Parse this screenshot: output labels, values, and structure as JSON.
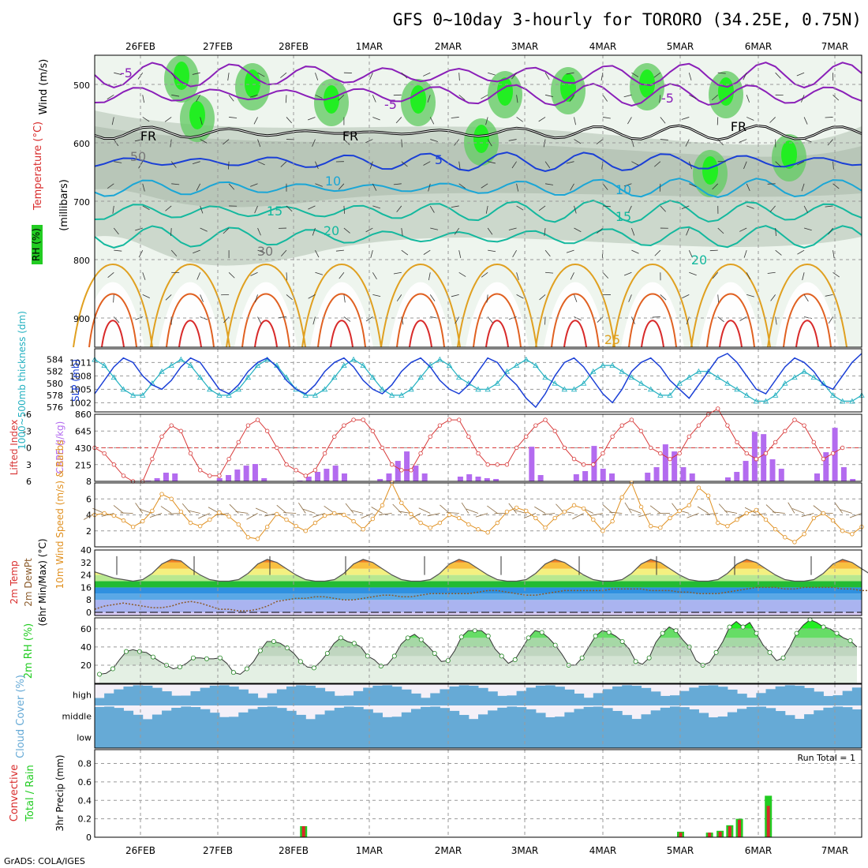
{
  "title": "GFS 0~10day 3-hourly for TORORO (34.25E, 0.75N)",
  "footer": "GrADS: COLA/IGES",
  "colors": {
    "purple": "#8a1fb8",
    "blue": "#1a3fd6",
    "cyan": "#1aa6d6",
    "teal": "#14b89e",
    "orange": "#e0a020",
    "red": "#d82a2a",
    "green": "#22cc22",
    "lightblue": "#66aad6",
    "slp": "#1a3fd6",
    "thick": "#22b0c0",
    "cape": "#b36bef",
    "li": "#d83a3a",
    "wind": "#e09020",
    "rh2m": "#22cc22"
  },
  "chart_data": [
    {
      "name": "upper-air",
      "type": "heatmap",
      "x": [
        "26FEB",
        "27FEB",
        "28FEB",
        "1MAR",
        "2MAR",
        "3MAR",
        "4MAR",
        "5MAR",
        "6MAR",
        "7MAR"
      ],
      "ylabel_parts": [
        "Wind (m/s)",
        "Temperature (°C)",
        "(millibars)",
        "RH (%)"
      ],
      "yticks": [
        500,
        600,
        700,
        800,
        900
      ],
      "ylim": [
        450,
        950
      ],
      "contour_labels": [
        "-5",
        "FR",
        "5",
        "10",
        "15",
        "20",
        "25",
        "30",
        "50"
      ]
    },
    {
      "name": "slp-thickness",
      "type": "line",
      "ylabel": "SLP (mb)",
      "ylabel2": "1000~500mb thickness (dm)",
      "yticks_slp": [
        1002,
        1005,
        1008,
        1011
      ],
      "yticks_thick": [
        576,
        578,
        580,
        582,
        584
      ],
      "slp": [
        1004,
        1007,
        1010,
        1012,
        1011,
        1008,
        1006,
        1005,
        1007,
        1010,
        1012,
        1011,
        1008,
        1005,
        1004,
        1006,
        1009,
        1011,
        1012,
        1010,
        1007,
        1005,
        1004,
        1006,
        1009,
        1011,
        1012,
        1010,
        1007,
        1005,
        1004,
        1006,
        1009,
        1011,
        1012,
        1010,
        1007,
        1005,
        1004,
        1006,
        1009,
        1012,
        1011,
        1008,
        1006,
        1003,
        1001,
        1004,
        1008,
        1011,
        1012,
        1010,
        1007,
        1004,
        1002,
        1005,
        1009,
        1011,
        1012,
        1010,
        1007,
        1005,
        1003,
        1006,
        1009,
        1012,
        1013,
        1011,
        1008,
        1005,
        1004,
        1007,
        1010,
        1012,
        1011,
        1009,
        1006,
        1005,
        1008,
        1011,
        1013
      ],
      "thick": [
        584,
        583,
        581,
        579,
        578,
        578,
        580,
        582,
        583,
        584,
        583,
        581,
        579,
        578,
        578,
        579,
        581,
        583,
        584,
        583,
        581,
        579,
        578,
        578,
        579,
        581,
        583,
        584,
        583,
        581,
        579,
        578,
        578,
        579,
        581,
        583,
        584,
        583,
        581,
        580,
        579,
        579,
        580,
        582,
        583,
        584,
        583,
        581,
        580,
        579,
        579,
        580,
        582,
        583,
        583,
        582,
        581,
        580,
        579,
        578,
        578,
        580,
        581,
        582,
        582,
        581,
        580,
        579,
        578,
        577,
        577,
        578,
        580,
        581,
        582,
        581,
        580,
        578,
        577,
        577,
        578
      ]
    },
    {
      "name": "cape-li",
      "type": "bar",
      "ylabel": "CAPE (J/kg)",
      "ylabel2": "Lifted Index",
      "yticks_cape": [
        8,
        215,
        430,
        645,
        860
      ],
      "yticks_li": [
        -6,
        -3,
        0,
        3,
        6
      ],
      "cape": [
        0,
        0,
        0,
        0,
        0,
        0,
        10,
        40,
        110,
        100,
        0,
        0,
        0,
        0,
        40,
        80,
        150,
        200,
        220,
        40,
        0,
        0,
        0,
        10,
        60,
        120,
        160,
        200,
        100,
        0,
        0,
        0,
        30,
        100,
        260,
        380,
        200,
        100,
        0,
        0,
        0,
        60,
        90,
        60,
        40,
        30,
        0,
        0,
        0,
        440,
        80,
        0,
        0,
        0,
        90,
        130,
        450,
        160,
        100,
        0,
        0,
        0,
        110,
        180,
        470,
        380,
        180,
        100,
        0,
        0,
        0,
        50,
        120,
        260,
        630,
        600,
        280,
        160,
        0,
        0,
        0,
        100,
        370,
        680,
        180,
        30,
        0
      ],
      "li": [
        0,
        1,
        3,
        5,
        6,
        6,
        2,
        -2,
        -4,
        -3,
        1,
        4,
        5,
        5,
        2,
        -1,
        -4,
        -5,
        -3,
        0,
        3,
        4,
        5,
        4,
        1,
        -2,
        -4,
        -5,
        -5,
        -3,
        0,
        3,
        4,
        4,
        1,
        -2,
        -4,
        -5,
        -5,
        -2,
        1,
        3,
        3,
        3,
        0,
        -2,
        -4,
        -5,
        -3,
        0,
        2,
        3,
        3,
        1,
        -2,
        -4,
        -5,
        -3,
        0,
        1,
        2,
        1,
        -2,
        -4,
        -6,
        -7,
        -4,
        -1,
        1,
        2,
        1,
        -1,
        -3,
        -5,
        -4,
        -1,
        2,
        1,
        0
      ]
    },
    {
      "name": "wind-10m",
      "type": "line",
      "ylabel": "10m Wind Speed (m/s) & Barbs",
      "yticks": [
        2,
        4,
        6
      ],
      "values": [
        4.0,
        4.2,
        3.9,
        3.3,
        2.5,
        3.2,
        4.5,
        6.6,
        6.0,
        4.4,
        3.0,
        2.6,
        3.4,
        4.3,
        3.8,
        2.8,
        1.2,
        1.0,
        2.5,
        4.1,
        3.4,
        2.6,
        2.0,
        3.0,
        3.9,
        4.2,
        4.0,
        3.2,
        2.2,
        3.5,
        5.2,
        8.0,
        5.5,
        4.1,
        3.0,
        2.4,
        3.0,
        4.0,
        3.6,
        2.8,
        2.2,
        1.8,
        3.0,
        4.4,
        4.9,
        4.5,
        3.6,
        2.4,
        3.6,
        4.4,
        5.2,
        4.8,
        3.4,
        2.0,
        3.2,
        6.2,
        8.0,
        5.0,
        2.6,
        2.4,
        3.6,
        4.5,
        5.2,
        7.4,
        6.4,
        3.0,
        2.6,
        3.4,
        4.2,
        4.6,
        3.4,
        2.2,
        1.2,
        0.6,
        1.6,
        3.6,
        4.2,
        3.3,
        2.0,
        1.6,
        2.5
      ]
    },
    {
      "name": "temp-2m",
      "type": "area",
      "ylabel_parts": [
        "2m Temp",
        "2m DewPt",
        "(6hr Min/Max) (°C)"
      ],
      "yticks": [
        0,
        8,
        16,
        24,
        32,
        40
      ],
      "temp": [
        26,
        24,
        22,
        21,
        20,
        21,
        25,
        31,
        34,
        33,
        28,
        24,
        21,
        20,
        20,
        21,
        25,
        31,
        34,
        32,
        28,
        24,
        21,
        20,
        20,
        21,
        25,
        31,
        34,
        32,
        28,
        24,
        21,
        20,
        20,
        21,
        25,
        31,
        34,
        32,
        28,
        24,
        21,
        20,
        20,
        21,
        25,
        31,
        34,
        32,
        28,
        24,
        21,
        20,
        20,
        21,
        25,
        31,
        34,
        32,
        28,
        24,
        21,
        20,
        20,
        21,
        25,
        31,
        34,
        32,
        28,
        24,
        21,
        20,
        20,
        21,
        25,
        31,
        34,
        32,
        28,
        24,
        21,
        20,
        20,
        22,
        25
      ],
      "dew": [
        2,
        4,
        5,
        6,
        5,
        4,
        3,
        3,
        4,
        6,
        7,
        6,
        4,
        2,
        2,
        1,
        1,
        2,
        4,
        7,
        8,
        9,
        9,
        10,
        10,
        9,
        8,
        8,
        9,
        10,
        11,
        11,
        10,
        10,
        11,
        12,
        12,
        12,
        12,
        12,
        13,
        14,
        14,
        13,
        12,
        11,
        11,
        12,
        13,
        14,
        14,
        14,
        14,
        14,
        15,
        15,
        15,
        15,
        14,
        14,
        14,
        13,
        13,
        12,
        12,
        12,
        13,
        14,
        15,
        16,
        16,
        16,
        15,
        15,
        16,
        16,
        16,
        16,
        15,
        15,
        14,
        14,
        13,
        13,
        13,
        13
      ]
    },
    {
      "name": "rh-2m",
      "type": "area",
      "ylabel": "2m RH (%)",
      "yticks": [
        20,
        40,
        60
      ],
      "values": [
        10,
        11,
        16,
        26,
        35,
        37,
        35,
        34,
        29,
        24,
        20,
        16,
        18,
        22,
        28,
        28,
        27,
        27,
        28,
        22,
        12,
        10,
        16,
        24,
        36,
        46,
        46,
        44,
        39,
        33,
        24,
        18,
        17,
        24,
        33,
        44,
        50,
        46,
        44,
        40,
        30,
        26,
        19,
        21,
        30,
        43,
        50,
        54,
        48,
        41,
        33,
        24,
        25,
        36,
        51,
        58,
        58,
        58,
        52,
        38,
        30,
        22,
        26,
        38,
        50,
        58,
        56,
        50,
        42,
        32,
        20,
        20,
        28,
        40,
        52,
        58,
        56,
        52,
        46,
        38,
        24,
        21,
        28,
        45,
        55,
        62,
        58,
        48,
        40,
        25,
        20,
        23,
        34,
        46,
        62,
        68,
        62,
        67,
        55,
        42,
        34,
        25,
        28,
        40,
        55,
        64,
        70,
        67,
        62,
        60,
        55,
        50,
        47,
        40
      ],
      "values_note": ""
    },
    {
      "name": "cloud-cover",
      "type": "area",
      "ylabel": "Cloud Cover (%)",
      "levels": [
        "high",
        "middle",
        "low"
      ]
    },
    {
      "name": "precip-3hr",
      "type": "bar",
      "ylabel_parts": [
        "3hr Precip (mm)"
      ],
      "ylabel2_parts": [
        "Total / Rain",
        "Convective"
      ],
      "yticks": [
        0,
        0.2,
        0.4,
        0.6,
        0.8
      ],
      "annotation": "Run Total = 1",
      "bars": [
        {
          "x": "28FEB 15Z",
          "total": 0.12,
          "conv": 0.12
        },
        {
          "x": "5MAR 12Z",
          "total": 0.06,
          "conv": 0.05
        },
        {
          "x": "5MAR 21Z",
          "total": 0.05,
          "conv": 0.05
        },
        {
          "x": "6MAR 00Z",
          "total": 0.07,
          "conv": 0.06
        },
        {
          "x": "6MAR 03Z",
          "total": 0.13,
          "conv": 0.12
        },
        {
          "x": "6MAR 06Z",
          "total": 0.2,
          "conv": 0.19
        },
        {
          "x": "6MAR 15Z",
          "total": 0.45,
          "conv": 0.34
        }
      ]
    }
  ]
}
